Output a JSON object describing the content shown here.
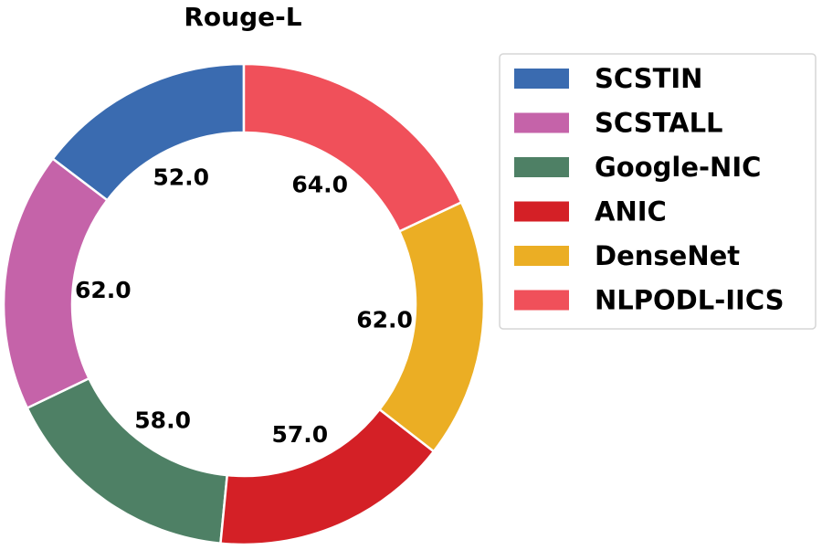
{
  "chart_data": {
    "type": "pie",
    "variant": "donut",
    "title": "Rouge-L",
    "categories": [
      "SCSTIN",
      "SCSTALL",
      "Google-NIC",
      "ANIC",
      "DenseNet",
      "NLPODL-IICS"
    ],
    "values": [
      52.0,
      62.0,
      58.0,
      57.0,
      62.0,
      64.0
    ],
    "value_labels": [
      "52.0",
      "62.0",
      "58.0",
      "57.0",
      "62.0",
      "64.0"
    ],
    "colors": [
      "#3a6bb0",
      "#c563a9",
      "#4e8065",
      "#d42026",
      "#ebae24",
      "#f0505a"
    ],
    "start_angle_deg": 90,
    "direction": "counterclockwise",
    "legend": {
      "placement": "right"
    }
  }
}
